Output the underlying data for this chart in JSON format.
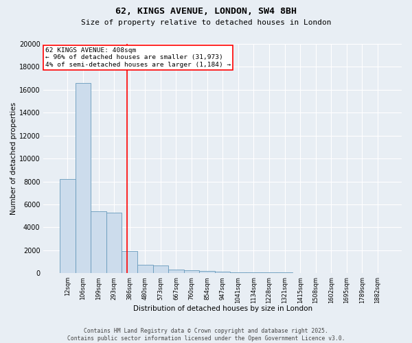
{
  "title_line1": "62, KINGS AVENUE, LONDON, SW4 8BH",
  "title_line2": "Size of property relative to detached houses in London",
  "xlabel": "Distribution of detached houses by size in London",
  "ylabel": "Number of detached properties",
  "bar_color": "#ccdcec",
  "bar_edge_color": "#6699bb",
  "vline_color": "red",
  "vline_x": 3.85,
  "annotation_text": "62 KINGS AVENUE: 408sqm\n← 96% of detached houses are smaller (31,973)\n4% of semi-detached houses are larger (1,184) →",
  "annotation_box_color": "red",
  "annotation_text_color": "black",
  "bin_labels": [
    "12sqm",
    "106sqm",
    "199sqm",
    "293sqm",
    "386sqm",
    "480sqm",
    "573sqm",
    "667sqm",
    "760sqm",
    "854sqm",
    "947sqm",
    "1041sqm",
    "1134sqm",
    "1228sqm",
    "1321sqm",
    "1415sqm",
    "1508sqm",
    "1602sqm",
    "1695sqm",
    "1789sqm",
    "1882sqm"
  ],
  "bar_heights": [
    8200,
    16600,
    5400,
    5300,
    1900,
    750,
    650,
    300,
    260,
    210,
    155,
    95,
    75,
    55,
    45,
    35,
    25,
    18,
    12,
    8,
    5
  ],
  "ylim": [
    0,
    20000
  ],
  "yticks": [
    0,
    2000,
    4000,
    6000,
    8000,
    10000,
    12000,
    14000,
    16000,
    18000,
    20000
  ],
  "footer_text": "Contains HM Land Registry data © Crown copyright and database right 2025.\nContains public sector information licensed under the Open Government Licence v3.0.",
  "background_color": "#e8eef4",
  "plot_background": "#e8eef4",
  "grid_color": "#ffffff",
  "title_fontsize": 9.5,
  "subtitle_fontsize": 8,
  "ylabel_fontsize": 7.5,
  "xlabel_fontsize": 7.5,
  "ytick_fontsize": 7,
  "xtick_fontsize": 6,
  "annotation_fontsize": 6.8,
  "footer_fontsize": 5.8
}
